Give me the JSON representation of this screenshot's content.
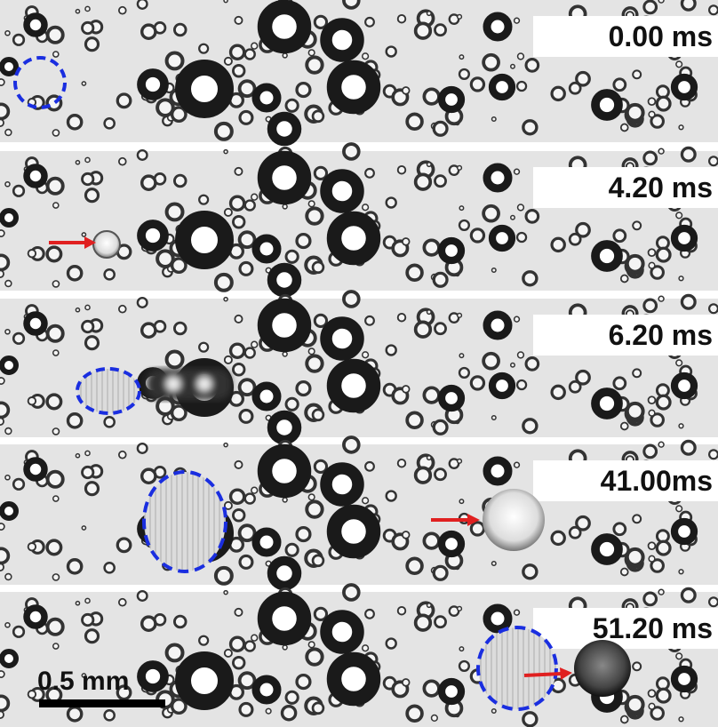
{
  "panels": [
    {
      "time": "0.00 ms"
    },
    {
      "time": "4.20 ms"
    },
    {
      "time": "6.20 ms"
    },
    {
      "time": "41.00ms"
    },
    {
      "time": "51.20 ms"
    }
  ],
  "scale_bar": {
    "label": "0.5 mm"
  }
}
